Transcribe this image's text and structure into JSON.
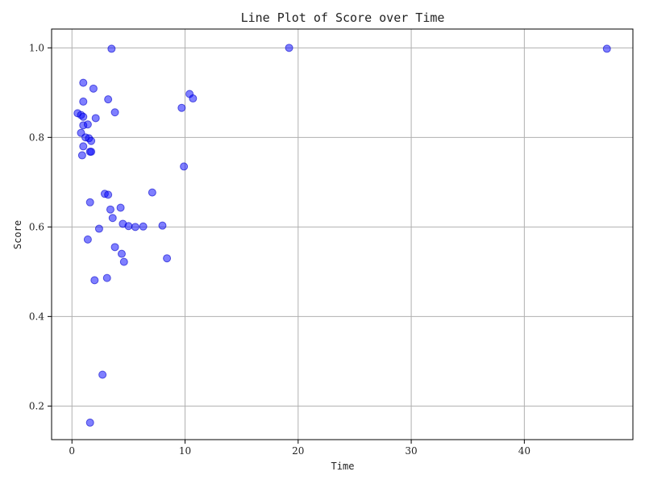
{
  "colors": {
    "point_fill": "#0000ff",
    "point_stroke": "#0000cc",
    "grid": "#b0b0b0"
  },
  "chart_data": {
    "type": "scatter",
    "title": "Line Plot of Score over Time",
    "xlabel": "Time",
    "ylabel": "Score",
    "xlim": [
      -1.8,
      49.6
    ],
    "ylim": [
      0.125,
      1.042
    ],
    "xticks": [
      0,
      10,
      20,
      30,
      40
    ],
    "yticks": [
      0.2,
      0.4,
      0.6,
      0.8,
      1.0
    ],
    "ytick_labels": [
      "0.2",
      "0.4",
      "0.6",
      "0.8",
      "1.0"
    ],
    "grid": true,
    "series": [
      {
        "name": "Score",
        "x": [
          3.5,
          19.2,
          47.3,
          1.0,
          1.9,
          10.4,
          10.7,
          3.2,
          9.7,
          1.0,
          3.8,
          0.5,
          0.8,
          1.0,
          2.1,
          1.0,
          1.4,
          0.8,
          1.2,
          1.5,
          1.7,
          1.0,
          1.6,
          1.7,
          0.9,
          9.9,
          7.1,
          2.9,
          3.2,
          1.6,
          4.3,
          3.4,
          3.6,
          4.5,
          5.0,
          5.6,
          6.3,
          8.0,
          2.4,
          1.4,
          3.8,
          4.4,
          8.4,
          4.6,
          3.1,
          2.0,
          2.7,
          1.6
        ],
        "y": [
          0.998,
          1.0,
          0.998,
          0.922,
          0.909,
          0.897,
          0.887,
          0.885,
          0.866,
          0.88,
          0.856,
          0.854,
          0.85,
          0.846,
          0.843,
          0.827,
          0.829,
          0.81,
          0.8,
          0.798,
          0.792,
          0.78,
          0.768,
          0.768,
          0.76,
          0.735,
          0.677,
          0.674,
          0.672,
          0.655,
          0.643,
          0.639,
          0.62,
          0.607,
          0.602,
          0.6,
          0.601,
          0.603,
          0.596,
          0.572,
          0.555,
          0.54,
          0.53,
          0.522,
          0.486,
          0.481,
          0.27,
          0.163
        ]
      }
    ]
  }
}
